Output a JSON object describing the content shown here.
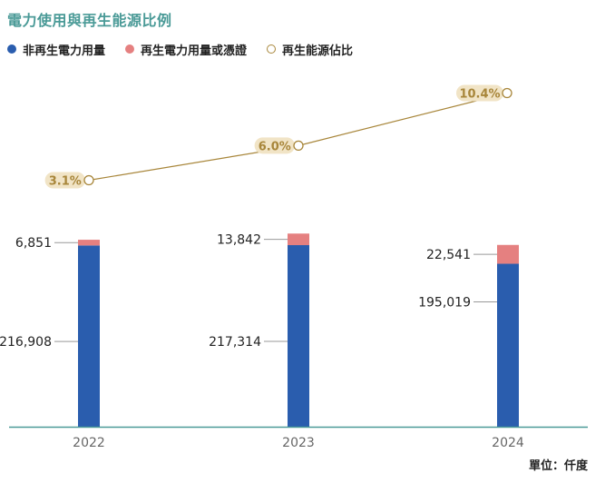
{
  "title": "電力使用與再生能源比例",
  "unit": "單位：仟度",
  "legend": [
    {
      "label": "非再生電力用量",
      "color": "#2a5dae",
      "marker": "dot"
    },
    {
      "label": "再生電力用量或憑證",
      "color": "#e58080",
      "marker": "dot"
    },
    {
      "label": "再生能源佔比",
      "color": "#a8863a",
      "marker": "ring"
    }
  ],
  "chart_data": {
    "type": "bar",
    "stacked": true,
    "categories": [
      "2022",
      "2023",
      "2024"
    ],
    "series": [
      {
        "name": "非再生電力用量",
        "values": [
          216908,
          217314,
          195019
        ],
        "labels": [
          "216,908",
          "217,314",
          "195,019"
        ],
        "color": "#2a5dae"
      },
      {
        "name": "再生電力用量或憑證",
        "values": [
          6851,
          13842,
          22541
        ],
        "labels": [
          "6,851",
          "13,842",
          "22,541"
        ],
        "color": "#e58080"
      }
    ],
    "line": {
      "name": "再生能源佔比",
      "values": [
        3.1,
        6.0,
        10.4
      ],
      "labels": [
        "3.1%",
        "6.0%",
        "10.4%"
      ],
      "color": "#a8863a",
      "label_bg": "#f1e4c6",
      "label_color": "#a8863a"
    },
    "colors": {
      "axis": "#4a9a97",
      "tick_text": "#666666",
      "leader": "#999999"
    }
  }
}
